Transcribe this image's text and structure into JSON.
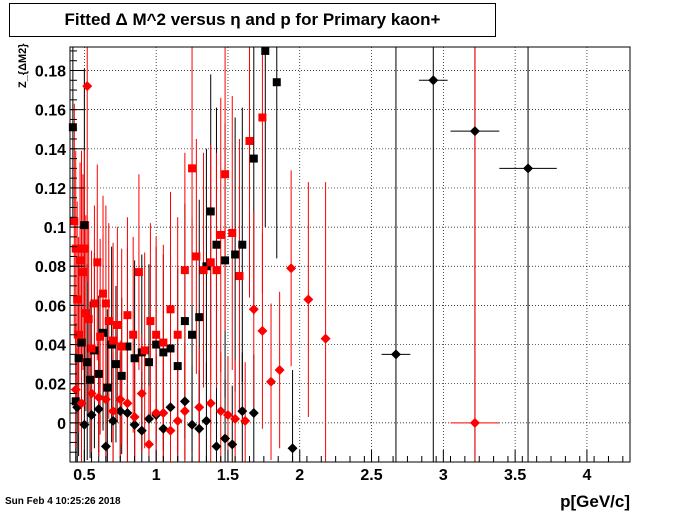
{
  "chart_data": {
    "type": "scatter",
    "title": "Fitted Δ M^2 versus η and p for Primary kaon+",
    "xlabel": "p[GeV/c]",
    "ylabel": "Z_{ΔM2}",
    "xlim": [
      0.4,
      4.3
    ],
    "ylim": [
      -0.02,
      0.192
    ],
    "x_ticks": [
      "0.5",
      "1",
      "1.5",
      "2",
      "2.5",
      "3",
      "3.5",
      "4"
    ],
    "y_ticks": [
      "0",
      "0.02",
      "0.04",
      "0.06",
      "0.08",
      "0.1",
      "0.12",
      "0.14",
      "0.16",
      "0.18"
    ],
    "grid": true,
    "series": [
      {
        "marker": "square",
        "color": "#000000",
        "points": [
          [
            0.42,
            0.151,
            0.01,
            0.05
          ],
          [
            0.44,
            0.011,
            0.01,
            0.04
          ],
          [
            0.46,
            0.033,
            0.01,
            0.05
          ],
          [
            0.48,
            0.041,
            0.01,
            0.04
          ],
          [
            0.5,
            0.101,
            0.01,
            0.08
          ],
          [
            0.52,
            0.031,
            0.01,
            0.05
          ],
          [
            0.54,
            0.022,
            0.01,
            0.04
          ],
          [
            0.57,
            0.037,
            0.01,
            0.05
          ],
          [
            0.6,
            0.025,
            0.01,
            0.04
          ],
          [
            0.63,
            0.046,
            0.01,
            0.05
          ],
          [
            0.66,
            0.018,
            0.01,
            0.04
          ],
          [
            0.69,
            0.04,
            0.01,
            0.05
          ],
          [
            0.72,
            0.03,
            0.01,
            0.04
          ],
          [
            0.76,
            0.024,
            0.01,
            0.04
          ],
          [
            0.8,
            0.039,
            0.01,
            0.05
          ],
          [
            0.85,
            0.033,
            0.01,
            0.05
          ],
          [
            0.9,
            0.036,
            0.01,
            0.05
          ],
          [
            0.95,
            0.031,
            0.01,
            0.05
          ],
          [
            1.0,
            0.04,
            0.01,
            0.05
          ],
          [
            1.05,
            0.036,
            0.01,
            0.05
          ],
          [
            1.1,
            0.038,
            0.01,
            0.05
          ],
          [
            1.15,
            0.029,
            0.01,
            0.05
          ],
          [
            1.2,
            0.052,
            0.01,
            0.06
          ],
          [
            1.25,
            0.045,
            0.01,
            0.06
          ],
          [
            1.3,
            0.054,
            0.01,
            0.06
          ],
          [
            1.35,
            0.08,
            0.01,
            0.06
          ],
          [
            1.38,
            0.108,
            0.01,
            0.07
          ],
          [
            1.42,
            0.091,
            0.01,
            0.07
          ],
          [
            1.48,
            0.083,
            0.01,
            0.07
          ],
          [
            1.55,
            0.086,
            0.01,
            0.07
          ],
          [
            1.6,
            0.091,
            0.01,
            0.07
          ],
          [
            1.68,
            0.135,
            0.01,
            0.08
          ],
          [
            1.76,
            0.19,
            0.02,
            0.09
          ],
          [
            1.84,
            0.174,
            0.02,
            0.09
          ]
        ]
      },
      {
        "marker": "diamond",
        "color": "#000000",
        "points": [
          [
            0.45,
            0.008,
            0.01,
            0.03
          ],
          [
            0.5,
            -0.001,
            0.01,
            0.03
          ],
          [
            0.55,
            0.004,
            0.01,
            0.03
          ],
          [
            0.6,
            0.007,
            0.01,
            0.03
          ],
          [
            0.65,
            -0.012,
            0.01,
            0.03
          ],
          [
            0.7,
            0.001,
            0.01,
            0.03
          ],
          [
            0.75,
            0.006,
            0.01,
            0.03
          ],
          [
            0.8,
            0.005,
            0.01,
            0.03
          ],
          [
            0.85,
            -0.001,
            0.01,
            0.03
          ],
          [
            0.9,
            -0.004,
            0.01,
            0.03
          ],
          [
            0.95,
            0.002,
            0.01,
            0.03
          ],
          [
            1.0,
            0.004,
            0.01,
            0.03
          ],
          [
            1.05,
            -0.003,
            0.01,
            0.03
          ],
          [
            1.1,
            0.008,
            0.01,
            0.03
          ],
          [
            1.2,
            0.011,
            0.01,
            0.03
          ],
          [
            1.25,
            -0.001,
            0.01,
            0.03
          ],
          [
            1.3,
            -0.003,
            0.01,
            0.03
          ],
          [
            1.35,
            0.001,
            0.01,
            0.03
          ],
          [
            1.42,
            -0.012,
            0.01,
            0.03
          ],
          [
            1.48,
            -0.008,
            0.01,
            0.03
          ],
          [
            1.53,
            -0.011,
            0.01,
            0.03
          ],
          [
            1.6,
            0.006,
            0.01,
            0.03
          ],
          [
            1.68,
            0.005,
            0.01,
            0.03
          ],
          [
            1.95,
            -0.013,
            0.02,
            0.04
          ],
          [
            2.67,
            0.035,
            0.1,
            0.2
          ],
          [
            2.93,
            0.175,
            0.1,
            0.2
          ],
          [
            3.22,
            0.149,
            0.17,
            0.2
          ],
          [
            3.59,
            0.13,
            0.2,
            0.2
          ]
        ]
      },
      {
        "marker": "square",
        "color": "#ff0000",
        "points": [
          [
            0.43,
            0.103,
            0.01,
            0.06
          ],
          [
            0.44,
            0.089,
            0.01,
            0.05
          ],
          [
            0.45,
            0.063,
            0.01,
            0.05
          ],
          [
            0.46,
            0.045,
            0.01,
            0.05
          ],
          [
            0.47,
            0.083,
            0.01,
            0.05
          ],
          [
            0.48,
            0.089,
            0.01,
            0.05
          ],
          [
            0.49,
            0.077,
            0.01,
            0.05
          ],
          [
            0.5,
            0.089,
            0.01,
            0.05
          ],
          [
            0.51,
            0.056,
            0.01,
            0.05
          ],
          [
            0.53,
            0.053,
            0.01,
            0.05
          ],
          [
            0.55,
            0.038,
            0.01,
            0.05
          ],
          [
            0.57,
            0.061,
            0.01,
            0.05
          ],
          [
            0.59,
            0.082,
            0.01,
            0.05
          ],
          [
            0.61,
            0.044,
            0.01,
            0.05
          ],
          [
            0.63,
            0.066,
            0.01,
            0.05
          ],
          [
            0.65,
            0.061,
            0.01,
            0.05
          ],
          [
            0.67,
            0.052,
            0.01,
            0.05
          ],
          [
            0.7,
            0.042,
            0.01,
            0.05
          ],
          [
            0.73,
            0.05,
            0.01,
            0.05
          ],
          [
            0.76,
            0.039,
            0.01,
            0.05
          ],
          [
            0.8,
            0.055,
            0.01,
            0.05
          ],
          [
            0.84,
            0.045,
            0.01,
            0.05
          ],
          [
            0.88,
            0.077,
            0.01,
            0.05
          ],
          [
            0.92,
            0.037,
            0.01,
            0.05
          ],
          [
            0.96,
            0.052,
            0.01,
            0.05
          ],
          [
            1.0,
            0.045,
            0.01,
            0.05
          ],
          [
            1.05,
            0.041,
            0.01,
            0.05
          ],
          [
            1.1,
            0.058,
            0.01,
            0.06
          ],
          [
            1.15,
            0.045,
            0.01,
            0.06
          ],
          [
            1.2,
            0.078,
            0.01,
            0.06
          ],
          [
            1.25,
            0.13,
            0.01,
            0.07
          ],
          [
            1.28,
            0.085,
            0.01,
            0.06
          ],
          [
            1.33,
            0.078,
            0.01,
            0.06
          ],
          [
            1.38,
            0.082,
            0.01,
            0.06
          ],
          [
            1.42,
            0.078,
            0.01,
            0.06
          ],
          [
            1.45,
            0.096,
            0.01,
            0.07
          ],
          [
            1.48,
            0.127,
            0.01,
            0.08
          ],
          [
            1.53,
            0.097,
            0.01,
            0.07
          ],
          [
            1.58,
            0.075,
            0.01,
            0.07
          ],
          [
            1.65,
            0.144,
            0.01,
            0.08
          ],
          [
            1.74,
            0.156,
            0.02,
            0.09
          ]
        ]
      },
      {
        "marker": "diamond",
        "color": "#ff0000",
        "points": [
          [
            0.44,
            0.017,
            0.01,
            0.03
          ],
          [
            0.48,
            0.01,
            0.01,
            0.03
          ],
          [
            0.52,
            0.172,
            0.01,
            0.1
          ],
          [
            0.55,
            0.015,
            0.01,
            0.03
          ],
          [
            0.6,
            0.013,
            0.01,
            0.03
          ],
          [
            0.65,
            0.012,
            0.01,
            0.03
          ],
          [
            0.7,
            0.006,
            0.01,
            0.03
          ],
          [
            0.75,
            0.012,
            0.01,
            0.03
          ],
          [
            0.8,
            0.01,
            0.01,
            0.03
          ],
          [
            0.85,
            0.003,
            0.01,
            0.03
          ],
          [
            0.9,
            0.015,
            0.01,
            0.03
          ],
          [
            0.95,
            -0.011,
            0.01,
            0.03
          ],
          [
            1.0,
            0.005,
            0.01,
            0.03
          ],
          [
            1.05,
            0.005,
            0.01,
            0.03
          ],
          [
            1.1,
            -0.004,
            0.01,
            0.03
          ],
          [
            1.15,
            0.001,
            0.01,
            0.03
          ],
          [
            1.2,
            0.006,
            0.01,
            0.03
          ],
          [
            1.3,
            0.008,
            0.01,
            0.03
          ],
          [
            1.38,
            0.01,
            0.01,
            0.03
          ],
          [
            1.45,
            0.006,
            0.01,
            0.03
          ],
          [
            1.5,
            0.004,
            0.01,
            0.03
          ],
          [
            1.55,
            0.002,
            0.01,
            0.03
          ],
          [
            1.62,
            0.001,
            0.01,
            0.03
          ],
          [
            1.68,
            0.058,
            0.02,
            0.05
          ],
          [
            1.74,
            0.047,
            0.02,
            0.05
          ],
          [
            1.8,
            0.021,
            0.02,
            0.04
          ],
          [
            1.86,
            0.027,
            0.02,
            0.04
          ],
          [
            1.94,
            0.079,
            0.02,
            0.05
          ],
          [
            2.06,
            0.063,
            0.03,
            0.06
          ],
          [
            2.18,
            0.043,
            0.03,
            0.08
          ],
          [
            3.22,
            0.0,
            0.17,
            0.2
          ]
        ]
      }
    ]
  },
  "footer": {
    "timestamp": "Sun Feb  4 10:25:26 2018"
  }
}
